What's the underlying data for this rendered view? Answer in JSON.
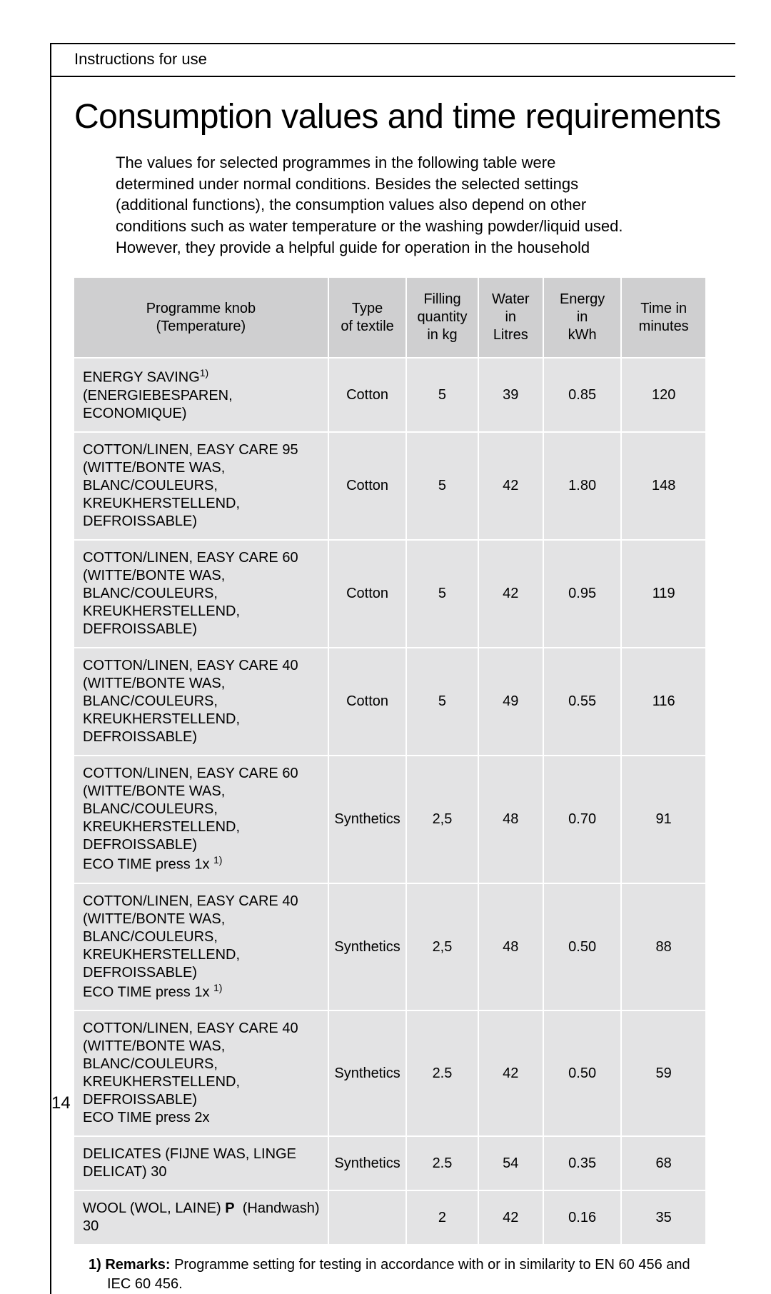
{
  "header": {
    "label": "Instructions for use"
  },
  "title": "Consumption values and time requirements",
  "intro": "The values for selected programmes in the following table were determined under normal conditions. Besides the selected settings (additional functions), the consumption values also depend on other conditions such as water temperature  or the washing powder/liquid used.  However, they provide a helpful guide for operation in the household",
  "table": {
    "columns": [
      "Programme knob (Temperature)",
      "Type of textile",
      "Filling quantity in kg",
      "Water in Litres",
      "Energy in kWh",
      "Time in minutes"
    ],
    "column_html": [
      "Programme knob<br>(Temperature)",
      "Type<br>of textile",
      "Filling<br>quantity<br>in kg",
      "Water<br>in<br>Litres",
      "Energy<br>in<br>kWh",
      "Time in<br>minutes"
    ],
    "rows": [
      {
        "prog": "ENERGY SAVING<span class=\"sup\">1)</span><br>(ENERGIEBESPAREN, ECONOMIQUE)",
        "type": "Cotton",
        "fill": "5",
        "water": "39",
        "energy": "0.85",
        "time": "120"
      },
      {
        "prog": "COTTON/LINEN, EASY CARE 95<br>(WITTE/BONTE WAS, BLANC/COULEURS, KREUKHERSTELLEND, DEFROISSABLE)",
        "type": "Cotton",
        "fill": "5",
        "water": "42",
        "energy": "1.80",
        "time": "148"
      },
      {
        "prog": "COTTON/LINEN, EASY CARE 60<br>(WITTE/BONTE WAS, BLANC/COULEURS, KREUKHERSTELLEND, DEFROISSABLE)",
        "type": "Cotton",
        "fill": "5",
        "water": "42",
        "energy": "0.95",
        "time": "119"
      },
      {
        "prog": "COTTON/LINEN, EASY CARE 40<br>(WITTE/BONTE WAS, BLANC/COULEURS, KREUKHERSTELLEND, DEFROISSABLE)",
        "type": "Cotton",
        "fill": "5",
        "water": "49",
        "energy": "0.55",
        "time": "116"
      },
      {
        "prog": "COTTON/LINEN, EASY CARE 60<br>(WITTE/BONTE WAS, BLANC/COULEURS, KREUKHERSTELLEND, DEFROISSABLE)<br>ECO TIME  press 1x  <span class=\"sup\">1)</span>",
        "type": "Synthetics",
        "fill": "2,5",
        "water": "48",
        "energy": "0.70",
        "time": "91"
      },
      {
        "prog": "COTTON/LINEN, EASY CARE 40<br>(WITTE/BONTE WAS, BLANC/COULEURS, KREUKHERSTELLEND, DEFROISSABLE)<br>ECO TIME  press 1x <span class=\"sup\">1)</span>",
        "type": "Synthetics",
        "fill": "2,5",
        "water": "48",
        "energy": "0.50",
        "time": "88"
      },
      {
        "prog": "COTTON/LINEN, EASY CARE 40<br>(WITTE/BONTE WAS, BLANC/COULEURS, KREUKHERSTELLEND, DEFROISSABLE)<br>ECO TIME  press 2x",
        "type": "Synthetics",
        "fill": "2.5",
        "water": "42",
        "energy": "0.50",
        "time": "59"
      },
      {
        "prog": "DELICATES (FIJNE WAS, LINGE DELICAT) 30",
        "type": "Synthetics",
        "fill": "2.5",
        "water": "54",
        "energy": "0.35",
        "time": "68"
      },
      {
        "prog": "WOOL (WOL, LAINE) <span class=\"handwash-glyph\">P</span>&nbsp;&nbsp;(Handwash) 30",
        "type": "",
        "fill": "2",
        "water": "42",
        "energy": "0.16",
        "time": "35"
      }
    ],
    "header_bg": "#cfcfd0",
    "cell_bg": "#e3e3e4",
    "border_color": "#ffffff",
    "fontsize": 20
  },
  "remarks": {
    "label": "1) Remarks:",
    "text": "Programme setting for testing in accordance with or in similarity to EN 60 456 and IEC 60 456."
  },
  "pagenum": "14"
}
